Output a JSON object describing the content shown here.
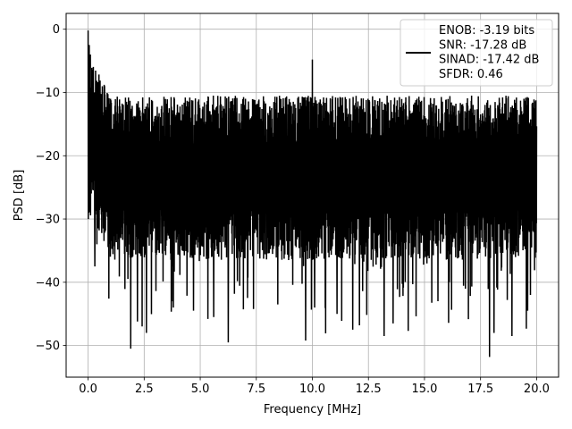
{
  "chart_data": {
    "type": "line",
    "title": "",
    "xlabel": "Frequency [MHz]",
    "ylabel": "PSD [dB]",
    "xlim": [
      -0.98,
      20.98
    ],
    "ylim": [
      -55,
      2.5
    ],
    "x_ticks": [
      0.0,
      2.5,
      5.0,
      7.5,
      10.0,
      12.5,
      15.0,
      17.5,
      20.0
    ],
    "x_tick_labels": [
      "0.0",
      "2.5",
      "5.0",
      "7.5",
      "10.0",
      "12.5",
      "15.0",
      "17.5",
      "20.0"
    ],
    "y_ticks": [
      0,
      -10,
      -20,
      -30,
      -40,
      -50
    ],
    "y_tick_labels": [
      "0",
      "−10",
      "−20",
      "−30",
      "−40",
      "−50"
    ],
    "grid": true,
    "legend": {
      "placement": "upper-right",
      "entries": [
        "ENOB: -3.19 bits\nSNR: -17.28 dB\nSINAD: -17.42 dB\nSFDR: 0.46"
      ]
    },
    "series": [
      {
        "color": "#000000",
        "x_start": 0.0,
        "x_end": 20.0,
        "noise_floor_db": -22.5,
        "peaks": [
          {
            "x": 0.0,
            "y": -0.2
          },
          {
            "x": 0.05,
            "y": -2.5
          },
          {
            "x": 0.1,
            "y": -4.0
          },
          {
            "x": 0.2,
            "y": -8.0
          },
          {
            "x": 1.0,
            "y": -11.0
          },
          {
            "x": 10.0,
            "y": -4.8
          }
        ],
        "deep_dips": [
          {
            "x": 0.3,
            "y": -37.5
          },
          {
            "x": 1.9,
            "y": -50.5
          },
          {
            "x": 2.2,
            "y": -46.2
          },
          {
            "x": 2.6,
            "y": -48.0
          },
          {
            "x": 3.8,
            "y": -44.0
          },
          {
            "x": 4.7,
            "y": -44.5
          },
          {
            "x": 5.6,
            "y": -45.5
          },
          {
            "x": 6.25,
            "y": -49.5
          },
          {
            "x": 9.7,
            "y": -49.2
          },
          {
            "x": 10.1,
            "y": -44.0
          },
          {
            "x": 11.1,
            "y": -45.0
          },
          {
            "x": 11.8,
            "y": -47.5
          },
          {
            "x": 12.1,
            "y": -46.8
          },
          {
            "x": 13.2,
            "y": -48.5
          },
          {
            "x": 13.6,
            "y": -46.5
          },
          {
            "x": 15.6,
            "y": -43.0
          },
          {
            "x": 17.9,
            "y": -51.8
          },
          {
            "x": 18.1,
            "y": -48.0
          },
          {
            "x": 18.9,
            "y": -48.5
          },
          {
            "x": 19.6,
            "y": -44.5
          }
        ]
      }
    ]
  }
}
